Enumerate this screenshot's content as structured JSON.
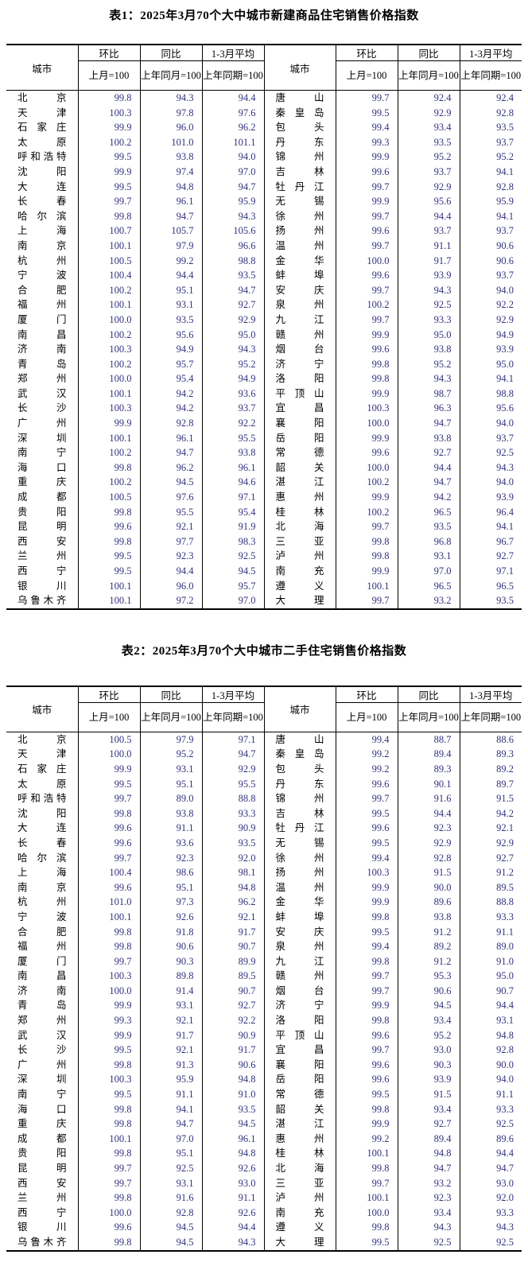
{
  "colors": {
    "background": "#ffffff",
    "text": "#000000",
    "number_text": "#333380",
    "border": "#000000"
  },
  "header_labels": {
    "city": "城市",
    "mom": "环比",
    "yoy": "同比",
    "avg": "1-3月平均",
    "mom_sub": "上月=100",
    "yoy_sub": "上年同月=100",
    "avg_sub": "上年同期=100"
  },
  "tables": [
    {
      "title": "表1：2025年3月70个大中城市新建商品住宅销售价格指数",
      "left_rows": [
        {
          "city": "北京",
          "mom": "99.8",
          "yoy": "94.3",
          "avg": "94.4"
        },
        {
          "city": "天津",
          "mom": "100.3",
          "yoy": "97.8",
          "avg": "97.6"
        },
        {
          "city": "石家庄",
          "mom": "99.9",
          "yoy": "96.0",
          "avg": "96.2"
        },
        {
          "city": "太原",
          "mom": "100.2",
          "yoy": "101.0",
          "avg": "101.1"
        },
        {
          "city": "呼和浩特",
          "mom": "99.5",
          "yoy": "93.8",
          "avg": "94.0"
        },
        {
          "city": "沈阳",
          "mom": "99.9",
          "yoy": "97.4",
          "avg": "97.0"
        },
        {
          "city": "大连",
          "mom": "99.5",
          "yoy": "94.8",
          "avg": "94.7"
        },
        {
          "city": "长春",
          "mom": "99.7",
          "yoy": "96.1",
          "avg": "95.9"
        },
        {
          "city": "哈尔滨",
          "mom": "99.8",
          "yoy": "94.7",
          "avg": "94.3"
        },
        {
          "city": "上海",
          "mom": "100.7",
          "yoy": "105.7",
          "avg": "105.6"
        },
        {
          "city": "南京",
          "mom": "100.1",
          "yoy": "97.9",
          "avg": "96.6"
        },
        {
          "city": "杭州",
          "mom": "100.5",
          "yoy": "99.2",
          "avg": "98.8"
        },
        {
          "city": "宁波",
          "mom": "100.4",
          "yoy": "94.4",
          "avg": "93.5"
        },
        {
          "city": "合肥",
          "mom": "100.2",
          "yoy": "95.1",
          "avg": "94.7"
        },
        {
          "city": "福州",
          "mom": "100.1",
          "yoy": "93.1",
          "avg": "92.7"
        },
        {
          "city": "厦门",
          "mom": "100.0",
          "yoy": "93.5",
          "avg": "92.9"
        },
        {
          "city": "南昌",
          "mom": "100.2",
          "yoy": "95.6",
          "avg": "95.0"
        },
        {
          "city": "济南",
          "mom": "100.3",
          "yoy": "94.9",
          "avg": "94.3"
        },
        {
          "city": "青岛",
          "mom": "100.2",
          "yoy": "95.7",
          "avg": "95.2"
        },
        {
          "city": "郑州",
          "mom": "100.0",
          "yoy": "95.4",
          "avg": "94.9"
        },
        {
          "city": "武汉",
          "mom": "100.1",
          "yoy": "94.2",
          "avg": "93.6"
        },
        {
          "city": "长沙",
          "mom": "100.3",
          "yoy": "94.2",
          "avg": "93.7"
        },
        {
          "city": "广州",
          "mom": "99.9",
          "yoy": "92.8",
          "avg": "92.2"
        },
        {
          "city": "深圳",
          "mom": "100.1",
          "yoy": "96.1",
          "avg": "95.5"
        },
        {
          "city": "南宁",
          "mom": "100.2",
          "yoy": "94.7",
          "avg": "93.8"
        },
        {
          "city": "海口",
          "mom": "99.8",
          "yoy": "96.2",
          "avg": "96.1"
        },
        {
          "city": "重庆",
          "mom": "100.2",
          "yoy": "94.5",
          "avg": "94.6"
        },
        {
          "city": "成都",
          "mom": "100.5",
          "yoy": "97.6",
          "avg": "97.1"
        },
        {
          "city": "贵阳",
          "mom": "99.8",
          "yoy": "95.5",
          "avg": "95.4"
        },
        {
          "city": "昆明",
          "mom": "99.6",
          "yoy": "92.1",
          "avg": "91.9"
        },
        {
          "city": "西安",
          "mom": "99.8",
          "yoy": "97.7",
          "avg": "98.3"
        },
        {
          "city": "兰州",
          "mom": "99.5",
          "yoy": "92.3",
          "avg": "92.5"
        },
        {
          "city": "西宁",
          "mom": "99.5",
          "yoy": "94.4",
          "avg": "94.5"
        },
        {
          "city": "银川",
          "mom": "100.1",
          "yoy": "96.0",
          "avg": "95.7"
        },
        {
          "city": "乌鲁木齐",
          "mom": "100.1",
          "yoy": "97.2",
          "avg": "97.0"
        }
      ],
      "right_rows": [
        {
          "city": "唐山",
          "mom": "99.7",
          "yoy": "92.4",
          "avg": "92.4"
        },
        {
          "city": "秦皇岛",
          "mom": "99.5",
          "yoy": "92.9",
          "avg": "92.8"
        },
        {
          "city": "包头",
          "mom": "99.4",
          "yoy": "93.4",
          "avg": "93.5"
        },
        {
          "city": "丹东",
          "mom": "99.3",
          "yoy": "93.5",
          "avg": "93.7"
        },
        {
          "city": "锦州",
          "mom": "99.9",
          "yoy": "95.2",
          "avg": "95.2"
        },
        {
          "city": "吉林",
          "mom": "99.6",
          "yoy": "93.7",
          "avg": "94.1"
        },
        {
          "city": "牡丹江",
          "mom": "99.7",
          "yoy": "92.9",
          "avg": "92.8"
        },
        {
          "city": "无锡",
          "mom": "99.9",
          "yoy": "95.6",
          "avg": "95.9"
        },
        {
          "city": "徐州",
          "mom": "99.7",
          "yoy": "94.4",
          "avg": "94.1"
        },
        {
          "city": "扬州",
          "mom": "99.6",
          "yoy": "93.7",
          "avg": "93.7"
        },
        {
          "city": "温州",
          "mom": "99.7",
          "yoy": "91.1",
          "avg": "90.6"
        },
        {
          "city": "金华",
          "mom": "100.0",
          "yoy": "91.7",
          "avg": "90.6"
        },
        {
          "city": "蚌埠",
          "mom": "99.6",
          "yoy": "93.9",
          "avg": "93.7"
        },
        {
          "city": "安庆",
          "mom": "99.7",
          "yoy": "94.3",
          "avg": "94.0"
        },
        {
          "city": "泉州",
          "mom": "100.2",
          "yoy": "92.5",
          "avg": "92.2"
        },
        {
          "city": "九江",
          "mom": "99.7",
          "yoy": "93.3",
          "avg": "92.9"
        },
        {
          "city": "赣州",
          "mom": "99.9",
          "yoy": "95.0",
          "avg": "94.9"
        },
        {
          "city": "烟台",
          "mom": "99.6",
          "yoy": "93.8",
          "avg": "93.9"
        },
        {
          "city": "济宁",
          "mom": "99.8",
          "yoy": "95.2",
          "avg": "95.0"
        },
        {
          "city": "洛阳",
          "mom": "99.8",
          "yoy": "94.3",
          "avg": "94.1"
        },
        {
          "city": "平顶山",
          "mom": "99.9",
          "yoy": "98.7",
          "avg": "98.8"
        },
        {
          "city": "宜昌",
          "mom": "100.3",
          "yoy": "96.3",
          "avg": "95.6"
        },
        {
          "city": "襄阳",
          "mom": "100.0",
          "yoy": "94.7",
          "avg": "94.0"
        },
        {
          "city": "岳阳",
          "mom": "99.9",
          "yoy": "93.8",
          "avg": "93.7"
        },
        {
          "city": "常德",
          "mom": "99.6",
          "yoy": "92.7",
          "avg": "92.5"
        },
        {
          "city": "韶关",
          "mom": "100.0",
          "yoy": "94.4",
          "avg": "94.3"
        },
        {
          "city": "湛江",
          "mom": "100.2",
          "yoy": "94.7",
          "avg": "94.0"
        },
        {
          "city": "惠州",
          "mom": "99.9",
          "yoy": "94.2",
          "avg": "93.9"
        },
        {
          "city": "桂林",
          "mom": "100.2",
          "yoy": "96.5",
          "avg": "96.4"
        },
        {
          "city": "北海",
          "mom": "99.7",
          "yoy": "93.5",
          "avg": "94.1"
        },
        {
          "city": "三亚",
          "mom": "99.8",
          "yoy": "96.8",
          "avg": "96.7"
        },
        {
          "city": "泸州",
          "mom": "99.8",
          "yoy": "93.1",
          "avg": "92.7"
        },
        {
          "city": "南充",
          "mom": "99.9",
          "yoy": "97.0",
          "avg": "97.1"
        },
        {
          "city": "遵义",
          "mom": "100.1",
          "yoy": "96.5",
          "avg": "96.5"
        },
        {
          "city": "大理",
          "mom": "99.7",
          "yoy": "93.2",
          "avg": "93.5"
        }
      ]
    },
    {
      "title": "表2：2025年3月70个大中城市二手住宅销售价格指数",
      "left_rows": [
        {
          "city": "北京",
          "mom": "100.5",
          "yoy": "97.9",
          "avg": "97.1"
        },
        {
          "city": "天津",
          "mom": "100.0",
          "yoy": "95.2",
          "avg": "94.7"
        },
        {
          "city": "石家庄",
          "mom": "99.9",
          "yoy": "93.1",
          "avg": "92.9"
        },
        {
          "city": "太原",
          "mom": "99.5",
          "yoy": "95.1",
          "avg": "95.5"
        },
        {
          "city": "呼和浩特",
          "mom": "99.7",
          "yoy": "89.0",
          "avg": "88.8"
        },
        {
          "city": "沈阳",
          "mom": "99.8",
          "yoy": "93.8",
          "avg": "93.3"
        },
        {
          "city": "大连",
          "mom": "99.6",
          "yoy": "91.1",
          "avg": "90.9"
        },
        {
          "city": "长春",
          "mom": "99.6",
          "yoy": "93.6",
          "avg": "93.5"
        },
        {
          "city": "哈尔滨",
          "mom": "99.7",
          "yoy": "92.3",
          "avg": "92.0"
        },
        {
          "city": "上海",
          "mom": "100.4",
          "yoy": "98.6",
          "avg": "98.1"
        },
        {
          "city": "南京",
          "mom": "99.6",
          "yoy": "95.1",
          "avg": "94.8"
        },
        {
          "city": "杭州",
          "mom": "101.0",
          "yoy": "97.3",
          "avg": "96.2"
        },
        {
          "city": "宁波",
          "mom": "100.1",
          "yoy": "92.6",
          "avg": "92.1"
        },
        {
          "city": "合肥",
          "mom": "99.8",
          "yoy": "91.8",
          "avg": "91.7"
        },
        {
          "city": "福州",
          "mom": "99.8",
          "yoy": "90.6",
          "avg": "90.7"
        },
        {
          "city": "厦门",
          "mom": "99.7",
          "yoy": "90.3",
          "avg": "89.9"
        },
        {
          "city": "南昌",
          "mom": "100.3",
          "yoy": "89.8",
          "avg": "89.5"
        },
        {
          "city": "济南",
          "mom": "100.0",
          "yoy": "91.4",
          "avg": "90.7"
        },
        {
          "city": "青岛",
          "mom": "99.9",
          "yoy": "93.1",
          "avg": "92.7"
        },
        {
          "city": "郑州",
          "mom": "99.3",
          "yoy": "92.1",
          "avg": "92.2"
        },
        {
          "city": "武汉",
          "mom": "99.9",
          "yoy": "91.7",
          "avg": "90.9"
        },
        {
          "city": "长沙",
          "mom": "99.5",
          "yoy": "92.1",
          "avg": "91.7"
        },
        {
          "city": "广州",
          "mom": "99.8",
          "yoy": "91.3",
          "avg": "90.6"
        },
        {
          "city": "深圳",
          "mom": "100.3",
          "yoy": "95.9",
          "avg": "94.8"
        },
        {
          "city": "南宁",
          "mom": "99.5",
          "yoy": "91.1",
          "avg": "91.0"
        },
        {
          "city": "海口",
          "mom": "99.8",
          "yoy": "94.1",
          "avg": "93.5"
        },
        {
          "city": "重庆",
          "mom": "99.8",
          "yoy": "94.7",
          "avg": "94.5"
        },
        {
          "city": "成都",
          "mom": "100.1",
          "yoy": "97.0",
          "avg": "96.1"
        },
        {
          "city": "贵阳",
          "mom": "99.8",
          "yoy": "95.1",
          "avg": "94.8"
        },
        {
          "city": "昆明",
          "mom": "99.7",
          "yoy": "92.5",
          "avg": "92.6"
        },
        {
          "city": "西安",
          "mom": "99.7",
          "yoy": "93.1",
          "avg": "93.0"
        },
        {
          "city": "兰州",
          "mom": "99.8",
          "yoy": "91.6",
          "avg": "91.1"
        },
        {
          "city": "西宁",
          "mom": "100.0",
          "yoy": "92.8",
          "avg": "92.6"
        },
        {
          "city": "银川",
          "mom": "99.6",
          "yoy": "94.5",
          "avg": "94.4"
        },
        {
          "city": "乌鲁木齐",
          "mom": "99.8",
          "yoy": "94.5",
          "avg": "94.3"
        }
      ],
      "right_rows": [
        {
          "city": "唐山",
          "mom": "99.4",
          "yoy": "88.7",
          "avg": "88.6"
        },
        {
          "city": "秦皇岛",
          "mom": "99.2",
          "yoy": "89.4",
          "avg": "89.3"
        },
        {
          "city": "包头",
          "mom": "99.2",
          "yoy": "89.3",
          "avg": "89.2"
        },
        {
          "city": "丹东",
          "mom": "99.6",
          "yoy": "90.1",
          "avg": "89.7"
        },
        {
          "city": "锦州",
          "mom": "99.7",
          "yoy": "91.6",
          "avg": "91.5"
        },
        {
          "city": "吉林",
          "mom": "99.5",
          "yoy": "94.4",
          "avg": "94.2"
        },
        {
          "city": "牡丹江",
          "mom": "99.6",
          "yoy": "92.3",
          "avg": "92.1"
        },
        {
          "city": "无锡",
          "mom": "99.5",
          "yoy": "92.9",
          "avg": "92.9"
        },
        {
          "city": "徐州",
          "mom": "99.4",
          "yoy": "92.8",
          "avg": "92.7"
        },
        {
          "city": "扬州",
          "mom": "100.3",
          "yoy": "91.5",
          "avg": "91.2"
        },
        {
          "city": "温州",
          "mom": "99.9",
          "yoy": "90.0",
          "avg": "89.5"
        },
        {
          "city": "金华",
          "mom": "99.9",
          "yoy": "89.6",
          "avg": "88.8"
        },
        {
          "city": "蚌埠",
          "mom": "99.8",
          "yoy": "93.8",
          "avg": "93.3"
        },
        {
          "city": "安庆",
          "mom": "99.5",
          "yoy": "91.2",
          "avg": "91.1"
        },
        {
          "city": "泉州",
          "mom": "99.4",
          "yoy": "89.2",
          "avg": "89.0"
        },
        {
          "city": "九江",
          "mom": "99.8",
          "yoy": "91.2",
          "avg": "91.0"
        },
        {
          "city": "赣州",
          "mom": "99.7",
          "yoy": "95.3",
          "avg": "95.0"
        },
        {
          "city": "烟台",
          "mom": "99.7",
          "yoy": "90.6",
          "avg": "90.7"
        },
        {
          "city": "济宁",
          "mom": "99.9",
          "yoy": "94.5",
          "avg": "94.4"
        },
        {
          "city": "洛阳",
          "mom": "99.8",
          "yoy": "93.4",
          "avg": "93.1"
        },
        {
          "city": "平顶山",
          "mom": "99.6",
          "yoy": "95.2",
          "avg": "94.8"
        },
        {
          "city": "宜昌",
          "mom": "99.7",
          "yoy": "93.0",
          "avg": "92.8"
        },
        {
          "city": "襄阳",
          "mom": "99.6",
          "yoy": "90.3",
          "avg": "90.0"
        },
        {
          "city": "岳阳",
          "mom": "99.6",
          "yoy": "93.9",
          "avg": "94.0"
        },
        {
          "city": "常德",
          "mom": "99.5",
          "yoy": "91.5",
          "avg": "91.1"
        },
        {
          "city": "韶关",
          "mom": "99.8",
          "yoy": "93.4",
          "avg": "93.3"
        },
        {
          "city": "湛江",
          "mom": "99.9",
          "yoy": "92.7",
          "avg": "92.5"
        },
        {
          "city": "惠州",
          "mom": "99.2",
          "yoy": "89.4",
          "avg": "89.6"
        },
        {
          "city": "桂林",
          "mom": "100.1",
          "yoy": "94.8",
          "avg": "94.4"
        },
        {
          "city": "北海",
          "mom": "99.8",
          "yoy": "94.7",
          "avg": "94.7"
        },
        {
          "city": "三亚",
          "mom": "99.7",
          "yoy": "93.2",
          "avg": "93.0"
        },
        {
          "city": "泸州",
          "mom": "100.1",
          "yoy": "92.3",
          "avg": "92.0"
        },
        {
          "city": "南充",
          "mom": "100.0",
          "yoy": "93.4",
          "avg": "93.3"
        },
        {
          "city": "遵义",
          "mom": "99.8",
          "yoy": "94.3",
          "avg": "94.3"
        },
        {
          "city": "大理",
          "mom": "99.5",
          "yoy": "92.5",
          "avg": "92.5"
        }
      ]
    }
  ]
}
